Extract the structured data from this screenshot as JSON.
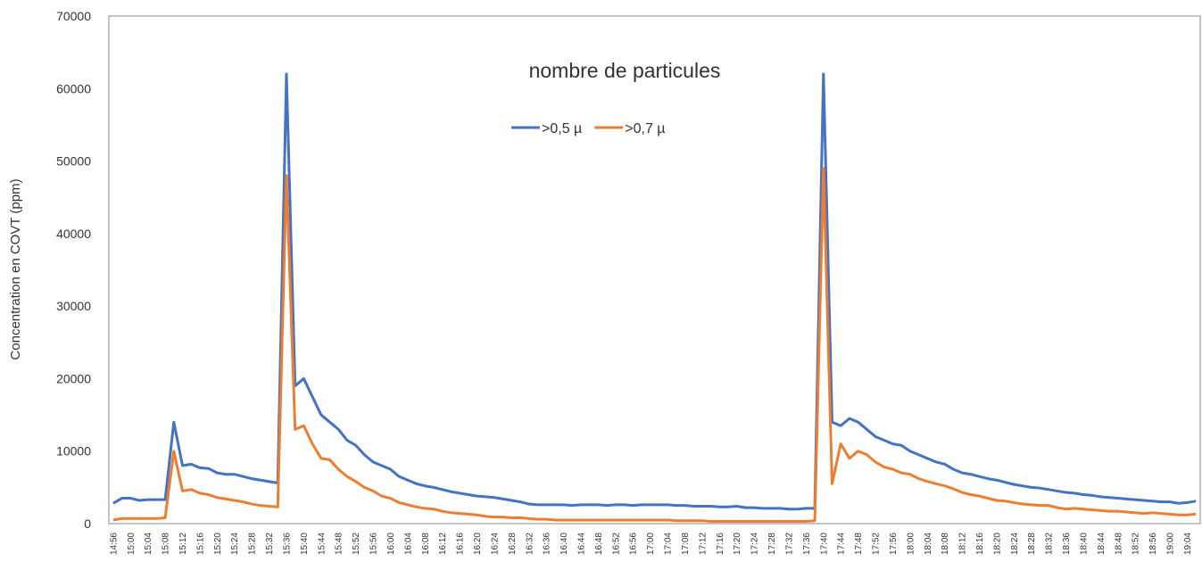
{
  "chart_data": {
    "type": "line",
    "title": "nombre de particules",
    "y_label": "Concentration en COVT (ppm)",
    "categories": [
      "14:56",
      null,
      "15:00",
      null,
      "15:04",
      null,
      "15:08",
      null,
      "15:12",
      null,
      "15:16",
      null,
      "15:20",
      null,
      "15:24",
      null,
      "15:28",
      null,
      "15:32",
      null,
      "15:36",
      null,
      "15:40",
      null,
      "15:44",
      null,
      "15:48",
      null,
      "15:52",
      null,
      "15:56",
      null,
      "16:00",
      null,
      "16:04",
      null,
      "16:08",
      null,
      "16:12",
      null,
      "16:16",
      null,
      "16:20",
      null,
      "16:24",
      null,
      "16:28",
      null,
      "16:32",
      null,
      "16:36",
      null,
      "16:40",
      null,
      "16:44",
      null,
      "16:48",
      null,
      "16:52",
      null,
      "16:56",
      null,
      "17:00",
      null,
      "17:04",
      null,
      "17:08",
      null,
      "17:12",
      null,
      "17:16",
      null,
      "17:20",
      null,
      "17:24",
      null,
      "17:28",
      null,
      "17:32",
      null,
      "17:36",
      null,
      "17:40",
      null,
      "17:44",
      null,
      "17:48",
      null,
      "17:52",
      null,
      "17:56",
      null,
      "18:00",
      null,
      "18:04",
      null,
      "18:08",
      null,
      "18:12",
      null,
      "18:16",
      null,
      "18:20",
      null,
      "18:24",
      null,
      "18:28",
      null,
      "18:32",
      null,
      "18:36",
      null,
      "18:40",
      null,
      "18:44",
      null,
      "18:48",
      null,
      "18:52",
      null,
      "18:56",
      null,
      "19:00",
      null,
      "19:04",
      null
    ],
    "series": [
      {
        "name": ">0,5 µ",
        "color": "#4472c4",
        "values": [
          2800,
          3500,
          3500,
          3200,
          3300,
          3300,
          3300,
          14000,
          8000,
          8200,
          7700,
          7600,
          7000,
          6800,
          6800,
          6500,
          6200,
          6000,
          5800,
          5600,
          62000,
          19000,
          20000,
          17500,
          15000,
          14000,
          13000,
          11500,
          10800,
          9500,
          8500,
          8000,
          7500,
          6500,
          6000,
          5500,
          5200,
          5000,
          4700,
          4400,
          4200,
          4000,
          3800,
          3700,
          3600,
          3400,
          3200,
          3000,
          2700,
          2600,
          2600,
          2600,
          2600,
          2500,
          2600,
          2600,
          2600,
          2500,
          2600,
          2600,
          2500,
          2600,
          2600,
          2600,
          2600,
          2500,
          2500,
          2400,
          2400,
          2400,
          2300,
          2300,
          2400,
          2200,
          2200,
          2100,
          2100,
          2100,
          2000,
          2000,
          2100,
          2100,
          62000,
          14000,
          13500,
          14500,
          14000,
          13000,
          12000,
          11500,
          11000,
          10800,
          10000,
          9500,
          9000,
          8500,
          8200,
          7500,
          7000,
          6800,
          6500,
          6200,
          6000,
          5700,
          5400,
          5200,
          5000,
          4900,
          4700,
          4500,
          4300,
          4200,
          4000,
          3900,
          3700,
          3600,
          3500,
          3400,
          3300,
          3200,
          3100,
          3000,
          3000,
          2800,
          2900,
          3100
        ]
      },
      {
        "name": ">0,7 µ",
        "color": "#ed7d31",
        "values": [
          500,
          700,
          700,
          700,
          700,
          700,
          800,
          10000,
          4500,
          4700,
          4200,
          4000,
          3600,
          3400,
          3200,
          3000,
          2700,
          2500,
          2400,
          2300,
          48000,
          13000,
          13500,
          11000,
          9000,
          8800,
          7500,
          6500,
          5800,
          5000,
          4500,
          3800,
          3500,
          2900,
          2600,
          2300,
          2100,
          2000,
          1700,
          1500,
          1400,
          1300,
          1200,
          1000,
          900,
          900,
          800,
          800,
          700,
          600,
          600,
          500,
          500,
          500,
          500,
          500,
          500,
          500,
          500,
          500,
          500,
          500,
          500,
          500,
          500,
          400,
          400,
          400,
          400,
          300,
          300,
          300,
          300,
          300,
          300,
          300,
          300,
          300,
          300,
          300,
          300,
          400,
          49000,
          5500,
          11000,
          9000,
          10000,
          9500,
          8500,
          7800,
          7500,
          7000,
          6800,
          6200,
          5800,
          5500,
          5200,
          4800,
          4300,
          4000,
          3800,
          3500,
          3200,
          3100,
          2900,
          2700,
          2600,
          2500,
          2500,
          2200,
          2000,
          2100,
          2000,
          1900,
          1800,
          1700,
          1700,
          1600,
          1500,
          1400,
          1500,
          1400,
          1300,
          1200,
          1200,
          1300
        ]
      }
    ],
    "ylim": [
      0,
      70000
    ],
    "yticks": [
      0,
      10000,
      20000,
      30000,
      40000,
      50000,
      60000,
      70000
    ],
    "grid": false
  }
}
